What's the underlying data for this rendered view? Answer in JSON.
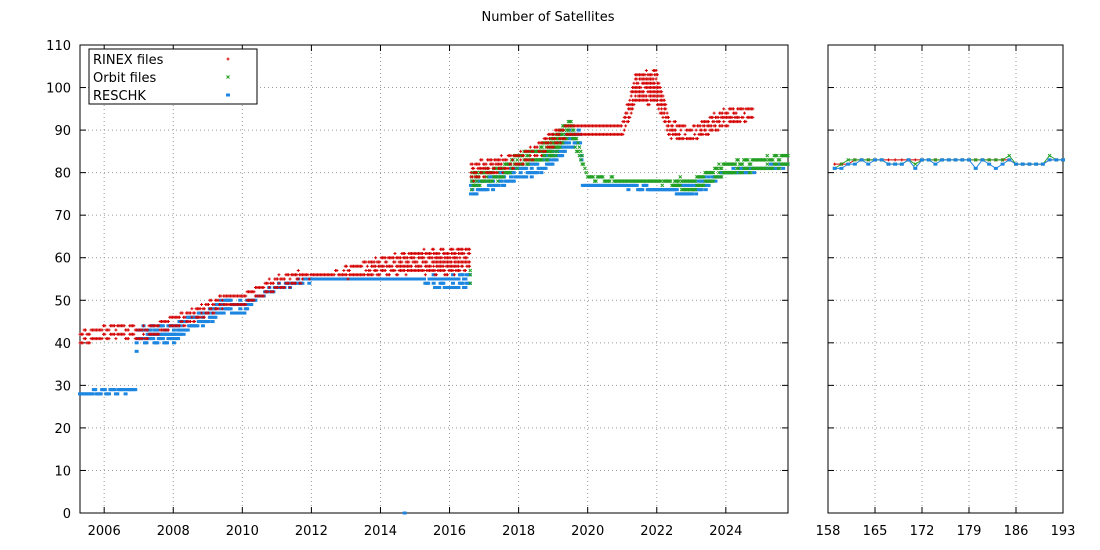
{
  "chart_data": {
    "type": "scatter",
    "title": "Number of Satellites",
    "legend_placement": "top-left",
    "grid": true,
    "colors": {
      "rinex": "#d40000",
      "orbit": "#22a022",
      "reschk": "#1c86e0"
    },
    "series": [
      {
        "key": "rinex",
        "name": "RINEX files",
        "marker": "plus"
      },
      {
        "key": "orbit",
        "name": "Orbit files",
        "marker": "cross"
      },
      {
        "key": "reschk",
        "name": "RESCHK",
        "marker": "square"
      }
    ],
    "panels": [
      {
        "id": "time-panel",
        "xlim": [
          2005.3,
          2025.8
        ],
        "ylim": [
          0,
          110
        ],
        "xticks": [
          2006,
          2008,
          2010,
          2012,
          2014,
          2016,
          2018,
          2020,
          2022,
          2024
        ],
        "xtick_labels": [
          "2006",
          "2008",
          "2010",
          "2012",
          "2014",
          "2016",
          "2018",
          "2020",
          "2022",
          "2024"
        ],
        "yticks": [
          0,
          10,
          20,
          30,
          40,
          50,
          60,
          70,
          80,
          90,
          100,
          110
        ],
        "ytick_labels": [
          "0",
          "10",
          "20",
          "30",
          "40",
          "50",
          "60",
          "70",
          "80",
          "90",
          "100",
          "110"
        ],
        "profiles": {
          "rinex": [
            [
              2005.3,
              41,
              2
            ],
            [
              2005.8,
              42,
              2
            ],
            [
              2006.5,
              43,
              2
            ],
            [
              2007.0,
              42,
              2
            ],
            [
              2007.5,
              43,
              2
            ],
            [
              2008.0,
              45,
              2
            ],
            [
              2008.5,
              46,
              2
            ],
            [
              2009.0,
              48,
              2
            ],
            [
              2009.5,
              50,
              2
            ],
            [
              2010.0,
              50,
              2
            ],
            [
              2010.5,
              52,
              2
            ],
            [
              2011.0,
              54,
              2
            ],
            [
              2011.5,
              55,
              2
            ],
            [
              2012.0,
              56,
              1
            ],
            [
              2012.5,
              56,
              1
            ],
            [
              2013.3,
              57,
              2
            ],
            [
              2014.0,
              58,
              3
            ],
            [
              2015.0,
              59,
              4
            ],
            [
              2016.0,
              59,
              5
            ],
            [
              2016.6,
              60,
              4
            ],
            [
              2016.62,
              80,
              3
            ],
            [
              2017.0,
              81,
              3
            ],
            [
              2018.0,
              83,
              2
            ],
            [
              2018.5,
              85,
              2
            ],
            [
              2019.0,
              88,
              3
            ],
            [
              2019.5,
              90,
              2
            ],
            [
              2020.0,
              90,
              2
            ],
            [
              2021.0,
              90,
              2
            ],
            [
              2021.4,
              100,
              6
            ],
            [
              2022.0,
              100,
              7
            ],
            [
              2022.4,
              90,
              3
            ],
            [
              2023.0,
              89,
              2
            ],
            [
              2023.5,
              91,
              3
            ],
            [
              2024.0,
              93,
              3
            ],
            [
              2024.8,
              94,
              2
            ]
          ],
          "orbit": [
            [
              2016.6,
              56,
              3
            ],
            [
              2016.62,
              78,
              3
            ],
            [
              2017.0,
              79,
              2
            ],
            [
              2017.5,
              80,
              2
            ],
            [
              2018.0,
              83,
              2
            ],
            [
              2018.5,
              84,
              2
            ],
            [
              2019.0,
              86,
              4
            ],
            [
              2019.5,
              91,
              3
            ],
            [
              2020.0,
              79,
              1
            ],
            [
              2021.0,
              78,
              1
            ],
            [
              2022.0,
              78,
              1
            ],
            [
              2023.0,
              77,
              2
            ],
            [
              2024.0,
              81,
              2
            ],
            [
              2025.0,
              82,
              2
            ],
            [
              2025.8,
              83,
              2
            ]
          ],
          "reschk": [
            [
              2005.3,
              28,
              1
            ],
            [
              2006.9,
              29,
              1
            ],
            [
              2006.95,
              42,
              2
            ],
            [
              2007.5,
              42,
              3
            ],
            [
              2008.0,
              42,
              3
            ],
            [
              2008.5,
              45,
              2
            ],
            [
              2009.0,
              46,
              2
            ],
            [
              2009.5,
              49,
              2
            ],
            [
              2010.0,
              48,
              2
            ],
            [
              2010.5,
              51,
              1
            ],
            [
              2011.0,
              53,
              1
            ],
            [
              2011.5,
              54,
              1
            ],
            [
              2012.0,
              55,
              1
            ],
            [
              2012.5,
              55,
              1
            ],
            [
              2013.3,
              55,
              1
            ],
            [
              2014.0,
              55,
              1
            ],
            [
              2015.0,
              55,
              1
            ],
            [
              2016.0,
              54,
              2
            ],
            [
              2016.6,
              55,
              2
            ],
            [
              2016.62,
              76,
              2
            ],
            [
              2017.0,
              77,
              2
            ],
            [
              2018.0,
              80,
              2
            ],
            [
              2018.5,
              81,
              2
            ],
            [
              2019.0,
              84,
              3
            ],
            [
              2019.5,
              88,
              3
            ],
            [
              2019.8,
              88,
              2
            ],
            [
              2019.85,
              77,
              1
            ],
            [
              2021.0,
              77,
              1
            ],
            [
              2022.0,
              76,
              1
            ],
            [
              2023.0,
              76,
              2
            ],
            [
              2024.0,
              80,
              1
            ],
            [
              2025.0,
              81,
              1
            ],
            [
              2025.8,
              82,
              1
            ]
          ]
        },
        "outliers": {
          "reschk": [
            [
              2014.7,
              0
            ]
          ]
        }
      },
      {
        "id": "day-panel",
        "xlim": [
          158,
          193
        ],
        "ylim": [
          0,
          110
        ],
        "xticks": [
          158,
          165,
          172,
          179,
          186,
          193
        ],
        "xtick_labels": [
          "158",
          "165",
          "172",
          "179",
          "186",
          "193"
        ],
        "day_series": {
          "x": [
            159,
            160,
            161,
            162,
            163,
            164,
            165,
            166,
            167,
            168,
            169,
            170,
            171,
            172,
            173,
            174,
            175,
            176,
            177,
            178,
            179,
            180,
            181,
            182,
            183,
            184,
            185,
            186,
            187,
            188,
            189,
            190,
            191,
            192,
            193
          ],
          "rinex": [
            82,
            82,
            82,
            83,
            83,
            83,
            83,
            83,
            83,
            83,
            83,
            83,
            83,
            83,
            83,
            83,
            83,
            83,
            83,
            83,
            83,
            83,
            83,
            83,
            83,
            83,
            83,
            82,
            82,
            82,
            82,
            82,
            83,
            83,
            83
          ],
          "orbit": [
            81,
            82,
            83,
            83,
            83,
            83,
            83,
            83,
            82,
            82,
            82,
            83,
            82,
            83,
            83,
            83,
            83,
            83,
            83,
            83,
            83,
            83,
            83,
            83,
            83,
            83,
            84,
            82,
            82,
            82,
            82,
            82,
            84,
            83,
            83
          ],
          "reschk": [
            81,
            81,
            82,
            82,
            83,
            82,
            83,
            83,
            82,
            82,
            82,
            83,
            81,
            83,
            83,
            82,
            83,
            83,
            83,
            83,
            83,
            81,
            83,
            82,
            81,
            82,
            83,
            82,
            82,
            82,
            82,
            82,
            83,
            83,
            83
          ]
        }
      }
    ]
  }
}
